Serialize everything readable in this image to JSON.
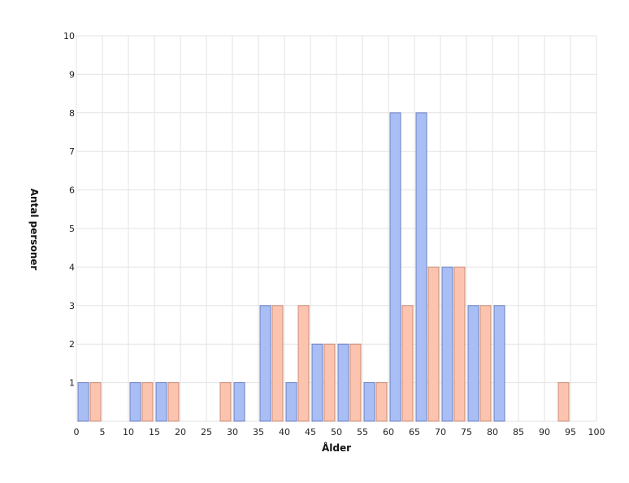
{
  "chart_data": {
    "type": "bar",
    "title": "",
    "xlabel": "Ålder",
    "ylabel": "Antal personer",
    "xlim": [
      0,
      100
    ],
    "ylim": [
      0,
      10
    ],
    "x_ticks": [
      0,
      5,
      10,
      15,
      20,
      25,
      30,
      35,
      40,
      45,
      50,
      55,
      60,
      65,
      70,
      75,
      80,
      85,
      90,
      95,
      100
    ],
    "y_ticks": [
      1,
      2,
      3,
      4,
      5,
      6,
      7,
      8,
      9,
      10
    ],
    "bin_width": 5,
    "grid": true,
    "legend": "none",
    "categories": [
      "0",
      "5",
      "10",
      "15",
      "20",
      "25",
      "30",
      "35",
      "40",
      "45",
      "50",
      "55",
      "60",
      "65",
      "70",
      "75",
      "80",
      "85",
      "90",
      "95"
    ],
    "series": [
      {
        "color": "#a8bef5",
        "border": "#6d7fc0",
        "values": [
          1,
          0,
          1,
          1,
          0,
          0,
          1,
          3,
          1,
          2,
          2,
          1,
          8,
          8,
          4,
          3,
          3,
          0,
          0,
          0
        ]
      },
      {
        "color": "#fcc4ae",
        "border": "#c98c78",
        "values": [
          1,
          0,
          1,
          1,
          0,
          1,
          0,
          3,
          3,
          2,
          2,
          1,
          3,
          4,
          4,
          3,
          0,
          0,
          1,
          0
        ]
      }
    ]
  }
}
